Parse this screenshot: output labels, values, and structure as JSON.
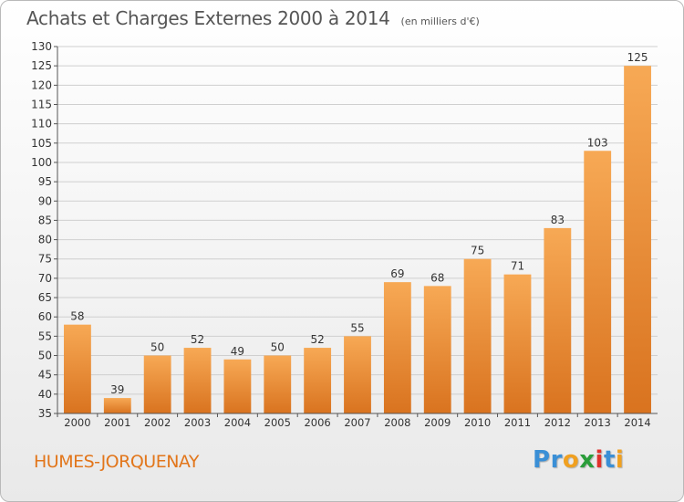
{
  "title": "Achats et Charges Externes 2000 à 2014",
  "subtitle": "(en milliers d'€)",
  "location": "HUMES-JORQUENAY",
  "logo": {
    "text": "Proxiti",
    "letters": [
      {
        "ch": "P",
        "color": "#3a8fd6"
      },
      {
        "ch": "r",
        "color": "#3a8fd6"
      },
      {
        "ch": "o",
        "color": "#f0a020"
      },
      {
        "ch": "x",
        "color": "#2a9d3a"
      },
      {
        "ch": "i",
        "color": "#e0322c"
      },
      {
        "ch": "t",
        "color": "#3a8fd6"
      },
      {
        "ch": "i",
        "color": "#f0a020"
      }
    ]
  },
  "colors": {
    "bar_top": "#f7a955",
    "bar_bottom": "#d9731f",
    "grid": "#cfcfcf",
    "axis_text": "#333333",
    "accent": "#e2761b"
  },
  "chart_data": {
    "type": "bar",
    "title": "Achats et Charges Externes 2000 à 2014",
    "subtitle": "(en milliers d'€)",
    "categories": [
      "2000",
      "2001",
      "2002",
      "2003",
      "2004",
      "2005",
      "2006",
      "2007",
      "2008",
      "2009",
      "2010",
      "2011",
      "2012",
      "2013",
      "2014"
    ],
    "values": [
      58,
      39,
      50,
      52,
      49,
      50,
      52,
      55,
      69,
      68,
      75,
      71,
      83,
      103,
      125
    ],
    "data_labels": [
      "58",
      "39",
      "50",
      "52",
      "49",
      "50",
      "52",
      "55",
      "69",
      "68",
      "75",
      "71",
      "83",
      "103",
      "125"
    ],
    "ylim": [
      35,
      130
    ],
    "yticks": [
      35,
      40,
      45,
      50,
      55,
      60,
      65,
      70,
      75,
      80,
      85,
      90,
      95,
      100,
      105,
      110,
      115,
      120,
      125,
      130
    ],
    "xlabel": "",
    "ylabel": "",
    "grid": true,
    "legend": "none"
  }
}
